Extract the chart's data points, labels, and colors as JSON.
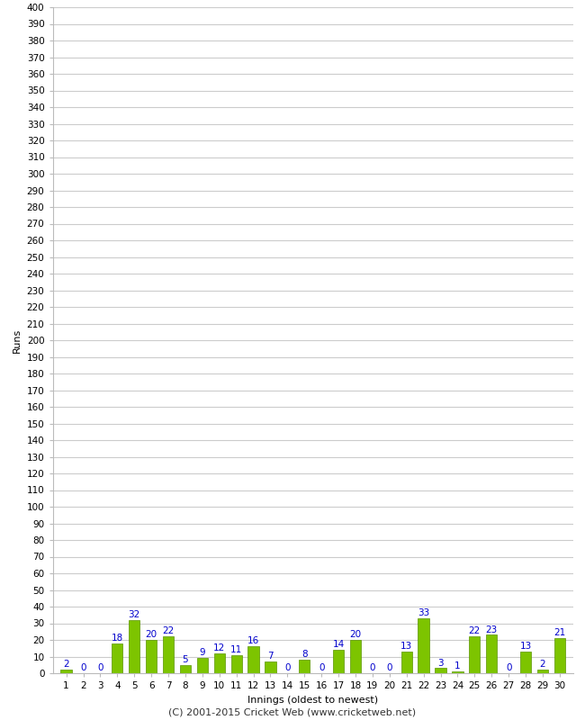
{
  "innings": [
    1,
    2,
    3,
    4,
    5,
    6,
    7,
    8,
    9,
    10,
    11,
    12,
    13,
    14,
    15,
    16,
    17,
    18,
    19,
    20,
    21,
    22,
    23,
    24,
    25,
    26,
    27,
    28,
    29,
    30
  ],
  "runs": [
    2,
    0,
    0,
    18,
    32,
    20,
    22,
    5,
    9,
    12,
    11,
    16,
    7,
    0,
    8,
    0,
    14,
    20,
    0,
    0,
    13,
    33,
    3,
    1,
    22,
    23,
    0,
    13,
    2,
    21
  ],
  "bar_color": "#7dc400",
  "bar_edge_color": "#5a9400",
  "label_color": "#0000cc",
  "bg_color": "#ffffff",
  "grid_color": "#cccccc",
  "ylabel": "Runs",
  "xlabel": "Innings (oldest to newest)",
  "footer": "(C) 2001-2015 Cricket Web (www.cricketweb.net)",
  "ylim": [
    0,
    400
  ],
  "yticks": [
    0,
    10,
    20,
    30,
    40,
    50,
    60,
    70,
    80,
    90,
    100,
    110,
    120,
    130,
    140,
    150,
    160,
    170,
    180,
    190,
    200,
    210,
    220,
    230,
    240,
    250,
    260,
    270,
    280,
    290,
    300,
    310,
    320,
    330,
    340,
    350,
    360,
    370,
    380,
    390,
    400
  ],
  "tick_fontsize": 7.5,
  "label_fontsize": 8,
  "footer_fontsize": 8,
  "bar_label_fontsize": 7.5
}
